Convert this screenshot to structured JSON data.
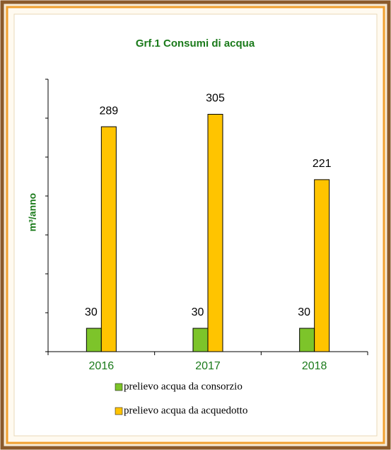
{
  "chart_data": {
    "type": "bar",
    "title": "Grf.1 Consumi di acqua",
    "y_label": "m³/anno",
    "categories": [
      "2016",
      "2017",
      "2018"
    ],
    "series": [
      {
        "name": "prelievo acqua da consorzio",
        "color": "#7dc42a",
        "values": [
          30,
          30,
          30
        ]
      },
      {
        "name": "prelievo acqua da acquedotto",
        "color": "#ffc400",
        "values": [
          289,
          305,
          221
        ]
      }
    ],
    "ylim": [
      0,
      350
    ],
    "yticks": [
      0,
      50,
      100,
      150,
      200,
      250,
      300,
      350
    ]
  }
}
